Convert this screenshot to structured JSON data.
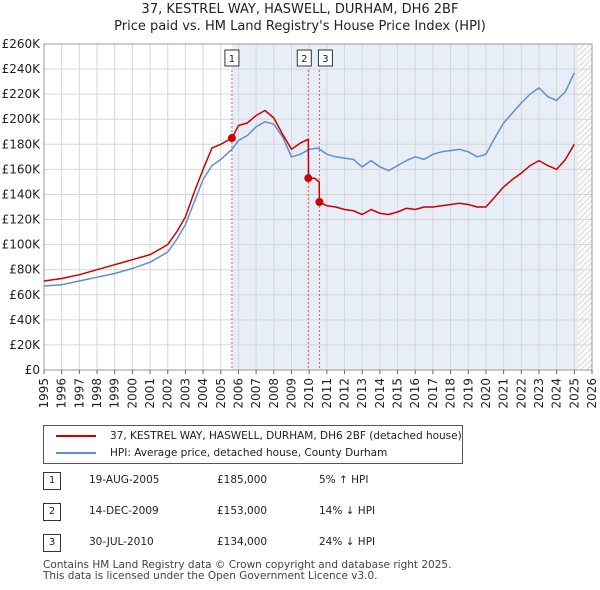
{
  "title_line1": "37, KESTREL WAY, HASWELL, DURHAM, DH6 2BF",
  "title_line2": "Price paid vs. HM Land Registry's House Price Index (HPI)",
  "colors": {
    "property": "#cc0000",
    "hpi": "#5b8fd6",
    "shade": "#e8eef8",
    "hatch": "#c8c8c8",
    "grid": "#d6d6d6",
    "marker_line": "#e06060"
  },
  "chart_data": {
    "type": "line",
    "title": "37, KESTREL WAY, HASWELL, DURHAM, DH6 2BF — Price paid vs. HM Land Registry's House Price Index (HPI)",
    "xlim": [
      1995,
      2026
    ],
    "ylim": [
      0,
      260000
    ],
    "y_ticks": [
      0,
      20000,
      40000,
      60000,
      80000,
      100000,
      120000,
      140000,
      160000,
      180000,
      200000,
      220000,
      240000,
      260000
    ],
    "y_tick_labels": [
      "£0",
      "£20K",
      "£40K",
      "£60K",
      "£80K",
      "£100K",
      "£120K",
      "£140K",
      "£160K",
      "£180K",
      "£200K",
      "£220K",
      "£240K",
      "£260K"
    ],
    "x_ticks": [
      1995,
      1996,
      1997,
      1998,
      1999,
      2000,
      2001,
      2002,
      2003,
      2004,
      2005,
      2006,
      2007,
      2008,
      2009,
      2010,
      2011,
      2012,
      2013,
      2014,
      2015,
      2016,
      2017,
      2018,
      2019,
      2020,
      2021,
      2022,
      2023,
      2024,
      2025,
      2026
    ],
    "x_tick_labels": [
      "1995",
      "1996",
      "1997",
      "1998",
      "1999",
      "2000",
      "2001",
      "2002",
      "2003",
      "2004",
      "2005",
      "2006",
      "2007",
      "2008",
      "2009",
      "2010",
      "2011",
      "2012",
      "2013",
      "2014",
      "2015",
      "2016",
      "2017",
      "2018",
      "2019",
      "2020",
      "2021",
      "2022",
      "2023",
      "2024",
      "2025",
      "2026"
    ],
    "shaded_period": [
      2005.63,
      2025.2
    ],
    "hatched_from": 2025.2,
    "series": [
      {
        "name": "37, KESTREL WAY, HASWELL, DURHAM, DH6 2BF (detached house)",
        "color": "#cc0000",
        "x": [
          1995.0,
          1996.0,
          1997.0,
          1998.0,
          1999.0,
          2000.0,
          2001.0,
          2002.0,
          2002.5,
          2003.0,
          2003.5,
          2004.0,
          2004.5,
          2005.0,
          2005.63,
          2006.0,
          2006.5,
          2007.0,
          2007.5,
          2008.0,
          2008.5,
          2009.0,
          2009.5,
          2009.95,
          2009.96,
          2010.3,
          2010.57,
          2010.58,
          2011.0,
          2011.5,
          2012.0,
          2012.5,
          2013.0,
          2013.5,
          2014.0,
          2014.5,
          2015.0,
          2015.5,
          2016.0,
          2016.5,
          2017.0,
          2017.5,
          2018.0,
          2018.5,
          2019.0,
          2019.5,
          2020.0,
          2020.5,
          2021.0,
          2021.5,
          2022.0,
          2022.5,
          2023.0,
          2023.5,
          2024.0,
          2024.5,
          2025.0
        ],
        "values": [
          71000,
          73000,
          76000,
          80000,
          84000,
          88000,
          92000,
          100000,
          110000,
          122000,
          142000,
          160000,
          177000,
          180000,
          185000,
          195000,
          197000,
          203000,
          207000,
          201000,
          188000,
          176000,
          181000,
          184000,
          153000,
          153000,
          150000,
          134000,
          131000,
          130000,
          128000,
          127000,
          124000,
          128000,
          125000,
          124000,
          126000,
          129000,
          128000,
          130000,
          130000,
          131000,
          132000,
          133000,
          132000,
          130000,
          130000,
          138000,
          146000,
          152000,
          157000,
          163000,
          167000,
          163000,
          160000,
          168000,
          180000
        ]
      },
      {
        "name": "HPI: Average price, detached house, County Durham",
        "color": "#5b8fd6",
        "x": [
          1995.0,
          1996.0,
          1997.0,
          1998.0,
          1999.0,
          2000.0,
          2001.0,
          2002.0,
          2002.5,
          2003.0,
          2003.5,
          2004.0,
          2004.5,
          2005.0,
          2005.63,
          2006.0,
          2006.5,
          2007.0,
          2007.5,
          2008.0,
          2008.5,
          2009.0,
          2009.5,
          2010.0,
          2010.5,
          2011.0,
          2011.5,
          2012.0,
          2012.5,
          2013.0,
          2013.5,
          2014.0,
          2014.5,
          2015.0,
          2015.5,
          2016.0,
          2016.5,
          2017.0,
          2017.5,
          2018.0,
          2018.5,
          2019.0,
          2019.5,
          2020.0,
          2020.5,
          2021.0,
          2021.5,
          2022.0,
          2022.5,
          2023.0,
          2023.5,
          2024.0,
          2024.5,
          2025.0
        ],
        "values": [
          67000,
          68000,
          71000,
          74000,
          77000,
          81000,
          86000,
          94000,
          104000,
          116000,
          134000,
          152000,
          163000,
          168000,
          176000,
          183000,
          187000,
          194000,
          198000,
          196000,
          186000,
          170000,
          172000,
          176000,
          177000,
          172000,
          170000,
          169000,
          168000,
          162000,
          167000,
          162000,
          159000,
          163000,
          167000,
          170000,
          168000,
          172000,
          174000,
          175000,
          176000,
          174000,
          170000,
          172000,
          185000,
          197000,
          205000,
          213000,
          220000,
          225000,
          218000,
          215000,
          222000,
          237000
        ]
      }
    ],
    "sales": [
      {
        "label": "1",
        "x": 2005.63,
        "value": 185000
      },
      {
        "label": "2",
        "x": 2009.95,
        "value": 153000
      },
      {
        "label": "3",
        "x": 2010.58,
        "value": 134000
      }
    ]
  },
  "legend": {
    "property_label": "37, KESTREL WAY, HASWELL, DURHAM, DH6 2BF (detached house)",
    "hpi_label": "HPI: Average price, detached house, County Durham"
  },
  "sales_table": [
    {
      "num": "1",
      "date": "19-AUG-2005",
      "price": "£185,000",
      "hpi": "5% ↑ HPI"
    },
    {
      "num": "2",
      "date": "14-DEC-2009",
      "price": "£153,000",
      "hpi": "14% ↓ HPI"
    },
    {
      "num": "3",
      "date": "30-JUL-2010",
      "price": "£134,000",
      "hpi": "24% ↓ HPI"
    }
  ],
  "footer": {
    "line1": "Contains HM Land Registry data © Crown copyright and database right 2025.",
    "line2": "This data is licensed under the Open Government Licence v3.0."
  }
}
